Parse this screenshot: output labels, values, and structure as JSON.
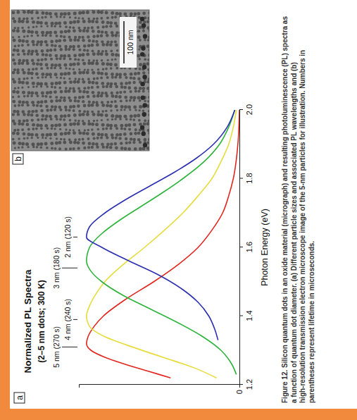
{
  "chart_data": {
    "type": "line",
    "panel_label": "a",
    "title": "Normalized PL Spectra",
    "subtitle": "(2–5 nm dots; 300 K)",
    "x_label": "Photon Energy (eV)",
    "xlim": [
      1.2,
      2.0
    ],
    "xticks": [
      1.2,
      1.4,
      1.6,
      1.8,
      {
        "value": 2.0,
        "label": "2.0"
      }
    ],
    "ylim": [
      0,
      1.05
    ],
    "yticks": [
      0
    ],
    "grid": false,
    "annotations": [
      {
        "text": "5 nm (270 s)",
        "x": 1.31
      },
      {
        "text": "4 nm (240 s)",
        "x": 1.39
      },
      {
        "text": "3 nm (180 s)",
        "x": 1.54
      },
      {
        "text": "2 nm (120 s)",
        "x": 1.63
      }
    ],
    "series": [
      {
        "color": "#e3241c",
        "x": [
          1.22,
          1.24,
          1.26,
          1.28,
          1.3,
          1.32,
          1.34,
          1.37,
          1.4,
          1.45,
          1.5,
          1.55,
          1.6,
          1.65,
          1.7,
          1.75,
          1.8,
          1.9,
          2.0
        ],
        "values": [
          0.45,
          0.6,
          0.75,
          0.88,
          0.97,
          1.0,
          0.99,
          0.95,
          0.89,
          0.74,
          0.56,
          0.4,
          0.27,
          0.18,
          0.11,
          0.07,
          0.04,
          0.01,
          0.0
        ]
      },
      {
        "color": "#e6dc3c",
        "x": [
          1.22,
          1.25,
          1.28,
          1.31,
          1.34,
          1.37,
          1.4,
          1.43,
          1.47,
          1.5,
          1.55,
          1.6,
          1.65,
          1.7,
          1.75,
          1.8,
          1.85,
          1.9,
          1.95,
          2.0
        ],
        "values": [
          0.15,
          0.3,
          0.5,
          0.7,
          0.88,
          0.98,
          1.0,
          0.98,
          0.93,
          0.88,
          0.76,
          0.62,
          0.49,
          0.37,
          0.27,
          0.18,
          0.12,
          0.07,
          0.04,
          0.02
        ]
      },
      {
        "color": "#2cb33a",
        "x": [
          1.23,
          1.26,
          1.3,
          1.34,
          1.38,
          1.42,
          1.46,
          1.5,
          1.53,
          1.56,
          1.6,
          1.64,
          1.68,
          1.72,
          1.76,
          1.8,
          1.85,
          1.9,
          1.95,
          2.0
        ],
        "values": [
          0.02,
          0.05,
          0.12,
          0.24,
          0.4,
          0.58,
          0.76,
          0.9,
          0.97,
          1.0,
          0.98,
          0.9,
          0.78,
          0.64,
          0.5,
          0.37,
          0.23,
          0.13,
          0.07,
          0.03
        ]
      },
      {
        "color": "#2a2eb0",
        "x": [
          1.33,
          1.36,
          1.4,
          1.44,
          1.48,
          1.52,
          1.56,
          1.6,
          1.63,
          1.66,
          1.7,
          1.74,
          1.78,
          1.82,
          1.86,
          1.9,
          1.95,
          2.0
        ],
        "values": [
          0.14,
          0.16,
          0.2,
          0.27,
          0.38,
          0.53,
          0.72,
          0.9,
          1.0,
          0.98,
          0.88,
          0.74,
          0.58,
          0.42,
          0.28,
          0.17,
          0.08,
          0.03
        ]
      }
    ]
  },
  "micrograph": {
    "panel_label": "b",
    "scale_bar_label": "100 nm"
  },
  "caption": "Figure 12. Silicon quantum dots in an oxide material (micrograph) and resulting photoluminescence (PL) spectra as a function of quantum dot diameter. (a) Different particle sizes and associated PL wavelengths and (b) high-resolution transmission electron microscope image of the 5-nm particles for illustration. Numbers in parentheses represent lifetime in microseconds."
}
